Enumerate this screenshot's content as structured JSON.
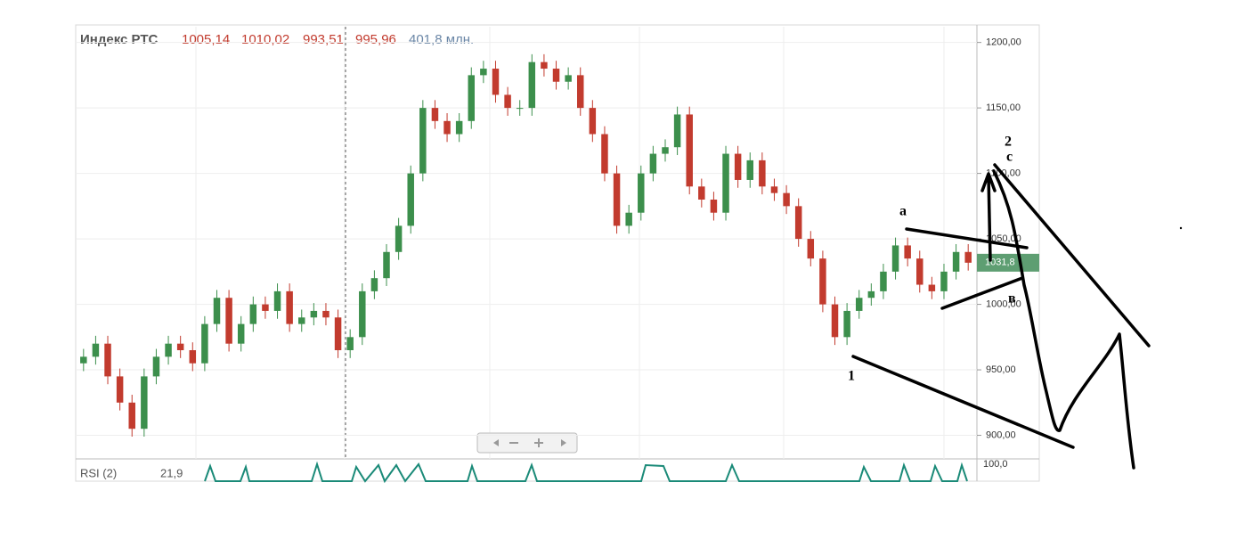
{
  "chart_data": {
    "type": "candlestick",
    "title": "Индекс РТС",
    "ohlc_labels": [
      "1005,14",
      "1010,02",
      "993,51",
      "995,96"
    ],
    "volume_label": "401,8 млн.",
    "up_color": "#3c8f4c",
    "down_color": "#c23b2e",
    "ylim": [
      882,
      1212
    ],
    "yticks": [
      {
        "value": 900,
        "label": "900,00"
      },
      {
        "value": 950,
        "label": "950,00"
      },
      {
        "value": 1000,
        "label": "1000,00"
      },
      {
        "value": 1050,
        "label": "1050,00"
      },
      {
        "value": 1100,
        "label": "1100,00"
      },
      {
        "value": 1150,
        "label": "1150,00"
      },
      {
        "value": 1200,
        "label": "1200,00"
      }
    ],
    "grid": true,
    "open": [
      955,
      960,
      970,
      945,
      925,
      905,
      945,
      960,
      970,
      965,
      955,
      985,
      1005,
      970,
      985,
      1000,
      995,
      1010,
      985,
      990,
      995,
      990,
      965,
      975,
      1010,
      1020,
      1040,
      1060,
      1100,
      1150,
      1140,
      1130,
      1140,
      1175,
      1180,
      1160,
      1150,
      1150,
      1185,
      1180,
      1170,
      1175,
      1150,
      1130,
      1100,
      1060,
      1070,
      1100,
      1115,
      1120,
      1145,
      1090,
      1080,
      1070,
      1115,
      1095,
      1110,
      1090,
      1085,
      1075,
      1050,
      1035,
      1000,
      975,
      995,
      1005,
      1010,
      1025,
      1045,
      1035,
      1015,
      1010,
      1025,
      1040
    ],
    "high": [
      966,
      976,
      976,
      951,
      931,
      951,
      966,
      976,
      976,
      971,
      991,
      1011,
      1011,
      991,
      1006,
      1006,
      1016,
      1016,
      996,
      1001,
      1001,
      996,
      981,
      1016,
      1026,
      1046,
      1066,
      1106,
      1156,
      1156,
      1146,
      1146,
      1181,
      1186,
      1186,
      1166,
      1156,
      1191,
      1191,
      1186,
      1181,
      1181,
      1156,
      1136,
      1106,
      1076,
      1106,
      1121,
      1126,
      1151,
      1151,
      1096,
      1086,
      1121,
      1121,
      1116,
      1116,
      1096,
      1091,
      1081,
      1056,
      1041,
      1006,
      1001,
      1011,
      1016,
      1031,
      1051,
      1051,
      1041,
      1021,
      1031,
      1046,
      1046
    ],
    "low": [
      949,
      954,
      939,
      919,
      899,
      899,
      939,
      954,
      959,
      949,
      949,
      979,
      964,
      964,
      979,
      989,
      989,
      979,
      979,
      984,
      984,
      959,
      959,
      969,
      1004,
      1014,
      1034,
      1054,
      1094,
      1134,
      1124,
      1124,
      1134,
      1169,
      1154,
      1144,
      1144,
      1144,
      1174,
      1164,
      1164,
      1144,
      1124,
      1094,
      1054,
      1054,
      1064,
      1094,
      1109,
      1114,
      1084,
      1074,
      1064,
      1064,
      1089,
      1089,
      1084,
      1079,
      1069,
      1044,
      1029,
      994,
      969,
      969,
      989,
      999,
      1004,
      1019,
      1029,
      1009,
      1004,
      1004,
      1019,
      1025.8
    ],
    "close": [
      960,
      970,
      945,
      925,
      905,
      945,
      960,
      970,
      965,
      955,
      985,
      1005,
      970,
      985,
      1000,
      995,
      1010,
      985,
      990,
      995,
      990,
      965,
      975,
      1010,
      1020,
      1040,
      1060,
      1100,
      1150,
      1140,
      1130,
      1140,
      1175,
      1180,
      1160,
      1150,
      1150,
      1185,
      1180,
      1170,
      1175,
      1150,
      1130,
      1100,
      1060,
      1070,
      1100,
      1115,
      1120,
      1145,
      1090,
      1080,
      1070,
      1115,
      1095,
      1110,
      1090,
      1085,
      1075,
      1050,
      1035,
      1000,
      975,
      995,
      1005,
      1010,
      1025,
      1045,
      1035,
      1015,
      1010,
      1025,
      1040,
      1031.8
    ],
    "last_price_label": "1031,8",
    "indicator": {
      "label": "RSI (2)",
      "value_label": "21,9",
      "top_label": "100,0"
    },
    "annotations": [
      "2",
      "c",
      "a",
      "в",
      "1"
    ]
  }
}
